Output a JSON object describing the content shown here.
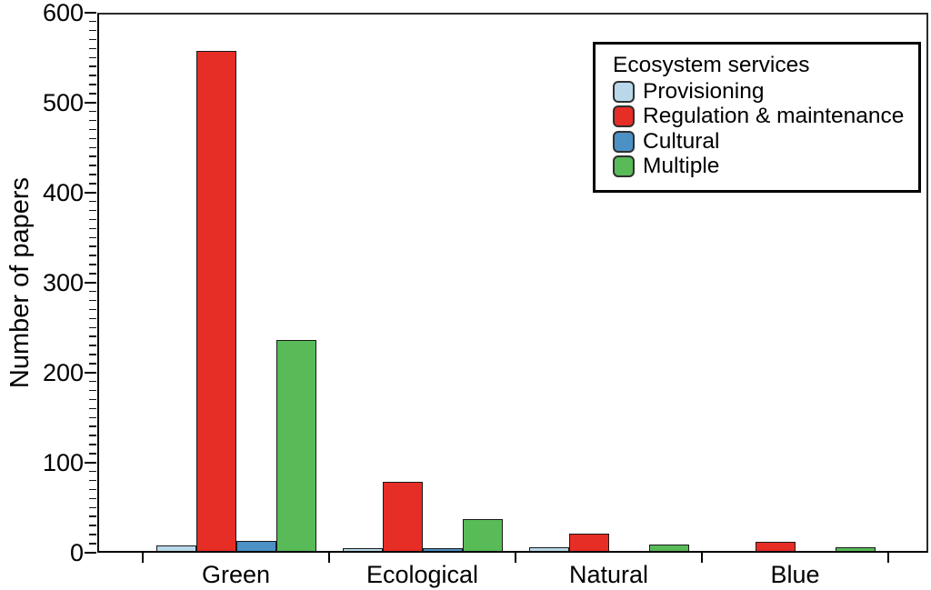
{
  "chart_data": {
    "type": "bar",
    "title": "",
    "xlabel": "",
    "ylabel": "Number of papers",
    "categories": [
      "Green",
      "Ecological",
      "Natural",
      "Blue"
    ],
    "series": [
      {
        "name": "Provisioning",
        "color": "#b9d8ea",
        "values": [
          6,
          3,
          4,
          0
        ]
      },
      {
        "name": "Regulation & maintenance",
        "color": "#e62d26",
        "values": [
          556,
          77,
          19,
          10
        ]
      },
      {
        "name": "Cultural",
        "color": "#4b91c6",
        "values": [
          11,
          3,
          0,
          0
        ]
      },
      {
        "name": "Multiple",
        "color": "#58bb57",
        "values": [
          234,
          35,
          7,
          4
        ]
      }
    ],
    "ylim": [
      0,
      600
    ],
    "ytick_interval": 100,
    "ytick_minor_interval": 10,
    "ytick_labels": [
      "0",
      "100",
      "200",
      "300",
      "400",
      "500",
      "600"
    ],
    "grid": "off",
    "legend": {
      "title": "Ecosystem services",
      "position": "top-right",
      "border_color": "#000000"
    },
    "axis_color": "#000000",
    "background_color": "#ffffff"
  }
}
